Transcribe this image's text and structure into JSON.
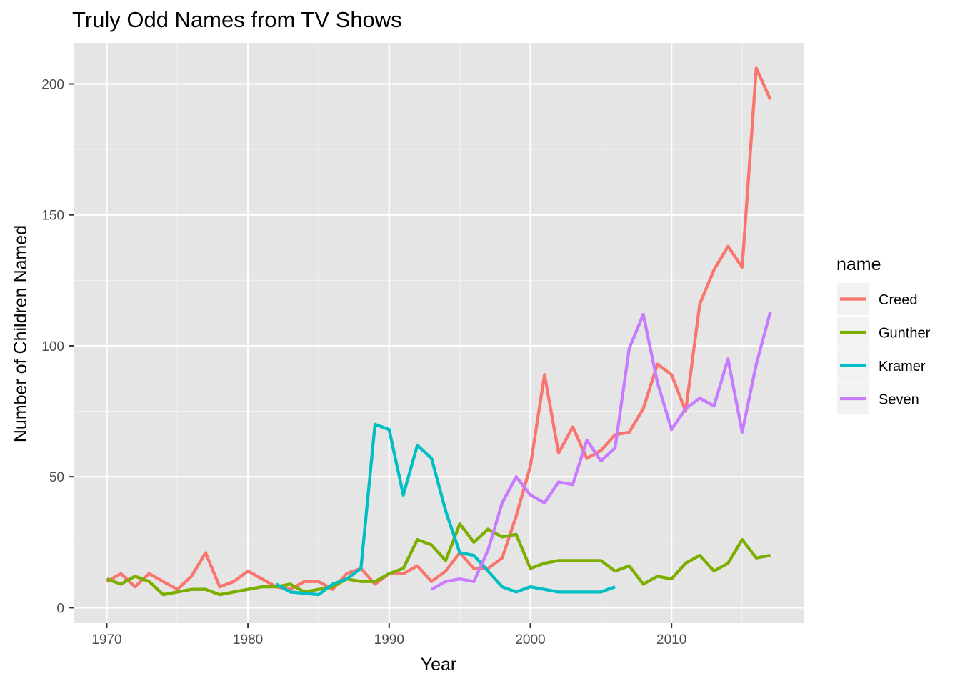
{
  "chart_data": {
    "type": "line",
    "title": "Truly Odd Names from TV Shows",
    "xlabel": "Year",
    "ylabel": "Number of Children Named",
    "xlim": [
      1967.65,
      2019.35
    ],
    "ylim": [
      -5.9,
      215.7
    ],
    "x_ticks": [
      1970,
      1980,
      1990,
      2000,
      2010
    ],
    "y_ticks": [
      0,
      50,
      100,
      150,
      200
    ],
    "grid": true,
    "background": "#e5e5e5",
    "legend": {
      "title": "name",
      "position": "right"
    },
    "series": [
      {
        "name": "Creed",
        "color": "#f8766d",
        "x": [
          1970,
          1971,
          1972,
          1973,
          1974,
          1975,
          1976,
          1977,
          1978,
          1979,
          1980,
          1981,
          1982,
          1983,
          1984,
          1985,
          1986,
          1987,
          1988,
          1989,
          1990,
          1991,
          1992,
          1993,
          1994,
          1995,
          1996,
          1997,
          1998,
          1999,
          2000,
          2001,
          2002,
          2003,
          2004,
          2005,
          2006,
          2007,
          2008,
          2009,
          2010,
          2011,
          2012,
          2013,
          2014,
          2015,
          2016,
          2017
        ],
        "y": [
          10,
          13,
          8,
          13,
          10,
          7,
          12,
          21,
          8,
          10,
          14,
          11,
          8,
          7,
          10,
          10,
          7,
          13,
          15,
          9,
          13,
          13,
          16,
          10,
          14,
          21,
          15,
          15,
          19,
          35,
          54,
          89,
          59,
          69,
          57,
          60,
          66,
          67,
          76,
          93,
          89,
          75,
          116,
          129,
          138,
          130,
          206,
          194
        ]
      },
      {
        "name": "Gunther",
        "color": "#7cae00",
        "x": [
          1970,
          1971,
          1972,
          1973,
          1974,
          1975,
          1976,
          1977,
          1978,
          1979,
          1980,
          1981,
          1982,
          1983,
          1984,
          1985,
          1986,
          1987,
          1988,
          1989,
          1990,
          1991,
          1992,
          1993,
          1994,
          1995,
          1996,
          1997,
          1998,
          1999,
          2000,
          2001,
          2002,
          2003,
          2004,
          2005,
          2006,
          2007,
          2008,
          2009,
          2010,
          2011,
          2012,
          2013,
          2014,
          2015,
          2016,
          2017
        ],
        "y": [
          11,
          9,
          12,
          10,
          5,
          6,
          7,
          7,
          5,
          6,
          7,
          8,
          8,
          9,
          6,
          7,
          8,
          11,
          10,
          10,
          13,
          15,
          26,
          24,
          18,
          32,
          25,
          30,
          27,
          28,
          15,
          17,
          18,
          18,
          18,
          18,
          14,
          16,
          9,
          12,
          11,
          17,
          20,
          14,
          17,
          26,
          19,
          20
        ]
      },
      {
        "name": "Kramer",
        "color": "#00bfc4",
        "x": [
          1982,
          1983,
          1984,
          1985,
          1986,
          1987,
          1988,
          1989,
          1990,
          1991,
          1992,
          1993,
          1994,
          1995,
          1996,
          1997,
          1998,
          1999,
          2000,
          2001,
          2002,
          2003,
          2004,
          2005,
          2006
        ],
        "y": [
          9,
          6,
          5.5,
          5,
          9,
          11,
          15,
          70,
          68,
          43,
          62,
          57,
          37,
          21,
          20,
          14,
          8,
          6,
          8,
          7,
          6,
          6,
          6,
          6,
          8
        ]
      },
      {
        "name": "Seven",
        "color": "#c77cff",
        "x": [
          1993,
          1994,
          1995,
          1996,
          1997,
          1998,
          1999,
          2000,
          2001,
          2002,
          2003,
          2004,
          2005,
          2006,
          2007,
          2008,
          2009,
          2010,
          2011,
          2012,
          2013,
          2014,
          2015,
          2016,
          2017
        ],
        "y": [
          7,
          10,
          11,
          10,
          22,
          40,
          50,
          43,
          40,
          48,
          47,
          64,
          56,
          61,
          99,
          112,
          86,
          68,
          76,
          80,
          77,
          95,
          67,
          93,
          113
        ]
      }
    ]
  }
}
